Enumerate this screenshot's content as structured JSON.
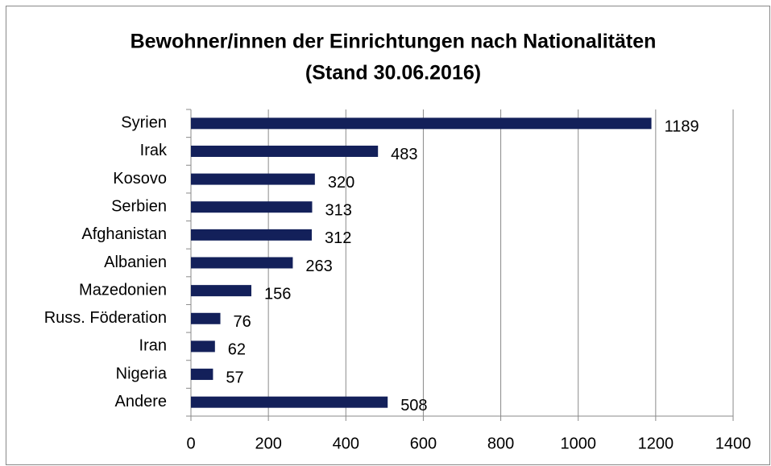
{
  "chart_data": {
    "type": "bar",
    "orientation": "horizontal",
    "title": "Bewohner/innen der Einrichtungen nach Nationalitäten",
    "subtitle": "(Stand 30.06.2016)",
    "categories": [
      "Syrien",
      "Irak",
      "Kosovo",
      "Serbien",
      "Afghanistan",
      "Albanien",
      "Mazedonien",
      "Russ. Föderation",
      "Iran",
      "Nigeria",
      "Andere"
    ],
    "values": [
      1189,
      483,
      320,
      313,
      312,
      263,
      156,
      76,
      62,
      57,
      508
    ],
    "color": "#13205a",
    "xlim": [
      0,
      1400
    ],
    "xticks": [
      0,
      200,
      400,
      600,
      800,
      1000,
      1200,
      1400
    ],
    "grid": true
  }
}
